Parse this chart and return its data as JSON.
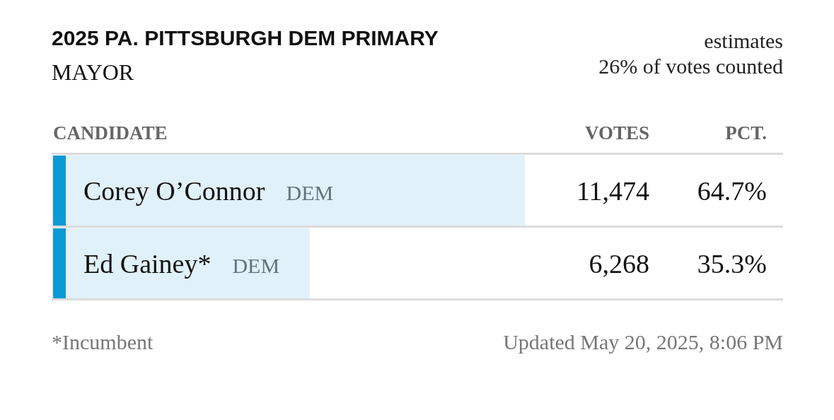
{
  "chart_data": {
    "type": "bar",
    "orientation": "horizontal",
    "title": "2025 PA. PITTSBURGH DEM PRIMARY",
    "subtitle": "MAYOR",
    "categories": [
      "Corey O’Connor",
      "Ed Gainey*"
    ],
    "values": [
      64.7,
      35.3
    ],
    "color": "#e0f1f9",
    "value_labels": [
      "64.7%",
      "35.3%"
    ],
    "annotations": [
      "estimates",
      "26% of votes counted",
      "CANDIDATE",
      "VOTES",
      "PCT.",
      "*Incumbent",
      "Updated May 20, 2025, 8:06 PM",
      "DEM",
      "11,474",
      "DEM",
      "6,268"
    ]
  }
}
